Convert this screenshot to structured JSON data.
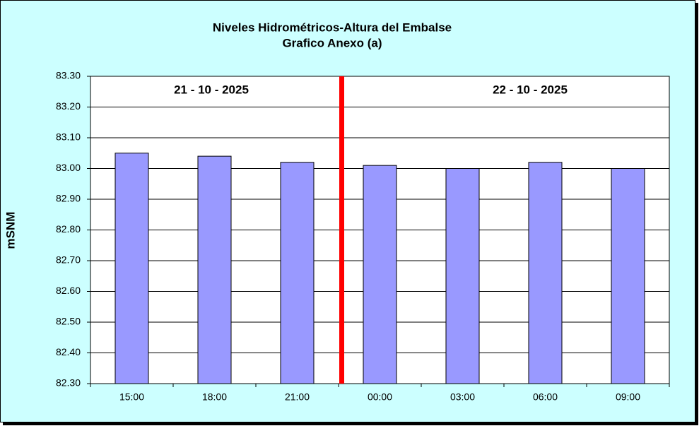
{
  "chart_data": {
    "type": "bar",
    "title": "Niveles Hidrométricos-Altura del Embalse",
    "subtitle": "Grafico Anexo (a)",
    "y_label": "mSNM",
    "annotations": [
      "21 - 10 - 2025",
      "22 - 10 - 2025"
    ],
    "categories": [
      "15:00",
      "18:00",
      "21:00",
      "00:00",
      "03:00",
      "06:00",
      "09:00"
    ],
    "values": [
      83.05,
      83.04,
      83.02,
      83.01,
      83.0,
      83.02,
      83.0
    ],
    "color": "#9999ff",
    "ylim": [
      82.3,
      83.3
    ],
    "yticks": [
      {
        "value": 82.3,
        "label": "82.30"
      },
      {
        "value": 82.4,
        "label": "82.40"
      },
      {
        "value": 82.5,
        "label": "82.50"
      },
      {
        "value": 82.6,
        "label": "82.60"
      },
      {
        "value": 82.7,
        "label": "82.70"
      },
      {
        "value": 82.8,
        "label": "82.80"
      },
      {
        "value": 82.9,
        "label": "82.90"
      },
      {
        "value": 83.0,
        "label": "83.00"
      },
      {
        "value": 83.1,
        "label": "83.10"
      },
      {
        "value": 83.2,
        "label": "83.20"
      },
      {
        "value": 83.3,
        "label": "83.30"
      }
    ],
    "grid": true
  }
}
